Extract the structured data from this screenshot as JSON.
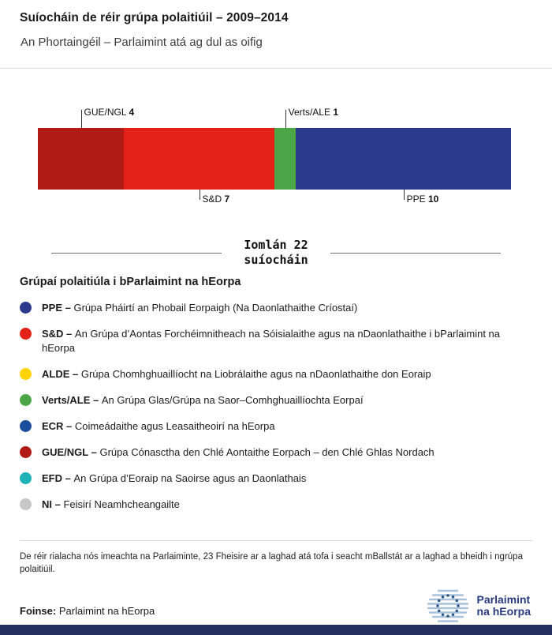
{
  "header": {
    "title": "Suíocháin de réir grúpa polaitiúil – 2009–2014",
    "subtitle": "An Phortaingéil – Parlaimint atá ag dul as oifig"
  },
  "chart_data": {
    "type": "bar",
    "variant": "stacked-horizontal",
    "title": "Suíocháin de réir grúpa polaitiúil – 2009–2014",
    "subtitle": "An Phortaingéil – Parlaimint atá ag dul as oifig",
    "total_seats": 22,
    "total_label_line1": "Iomlán 22",
    "total_label_line2": "suíocháin",
    "categories": [
      "GUE/NGL",
      "S&D",
      "Verts/ALE",
      "PPE"
    ],
    "values": [
      4,
      7,
      1,
      10
    ],
    "segments": [
      {
        "group": "GUE/NGL",
        "seats": 4,
        "color": "#b21b15",
        "label_position": "above"
      },
      {
        "group": "S&D",
        "seats": 7,
        "color": "#e32119",
        "label_position": "below"
      },
      {
        "group": "Verts/ALE",
        "seats": 1,
        "color": "#4ca647",
        "label_position": "above"
      },
      {
        "group": "PPE",
        "seats": 10,
        "color": "#2b3a8d",
        "label_position": "below"
      }
    ]
  },
  "legend": {
    "heading": "Grúpaí polaitiúla i bParlaimint na hEorpa",
    "items": [
      {
        "code": "PPE",
        "color": "#2b3a8d",
        "description": "Grúpa Pháirtí an Phobail Eorpaigh (Na Daonlathaithe Críostaí)"
      },
      {
        "code": "S&D",
        "color": "#e32119",
        "description": "An Grúpa d’Aontas Forchéimnitheach na Sóisialaithe agus na nDaonlathaithe i bParlaimint na hEorpa"
      },
      {
        "code": "ALDE",
        "color": "#fdd402",
        "description": "Grúpa Chomhghuaillíocht na Liobrálaithe agus na nDaonlathaithe don Eoraip"
      },
      {
        "code": "Verts/ALE",
        "color": "#4ca647",
        "description": "An Grúpa Glas/Grúpa na Saor–Comhghuaillíochta Eorpaí"
      },
      {
        "code": "ECR",
        "color": "#1c4e9e",
        "description": "Coimeádaithe agus Leasaitheoirí na hEorpa"
      },
      {
        "code": "GUE/NGL",
        "color": "#b21b15",
        "description": "Grúpa Cónasctha den Chlé Aontaithe Eorpach – den Chlé Ghlas Nordach"
      },
      {
        "code": "EFD",
        "color": "#1cb2b8",
        "description": "An Grúpa d’Eoraip na Saoirse agus an Daonlathais"
      },
      {
        "code": "NI",
        "color": "#c7c7c7",
        "description": "Feisirí Neamhcheangailte"
      }
    ]
  },
  "footer": {
    "note": "De réir rialacha nós imeachta na Parlaiminte, 23 Fheisire ar a laghad atá tofa i seacht mBallstát ar a laghad a bheidh i ngrúpa polaitiúil.",
    "source_label": "Foinse:",
    "source_value": "Parlaimint na hEorpa",
    "logo_line1": "Parlaimint",
    "logo_line2": "na hEorpa"
  }
}
